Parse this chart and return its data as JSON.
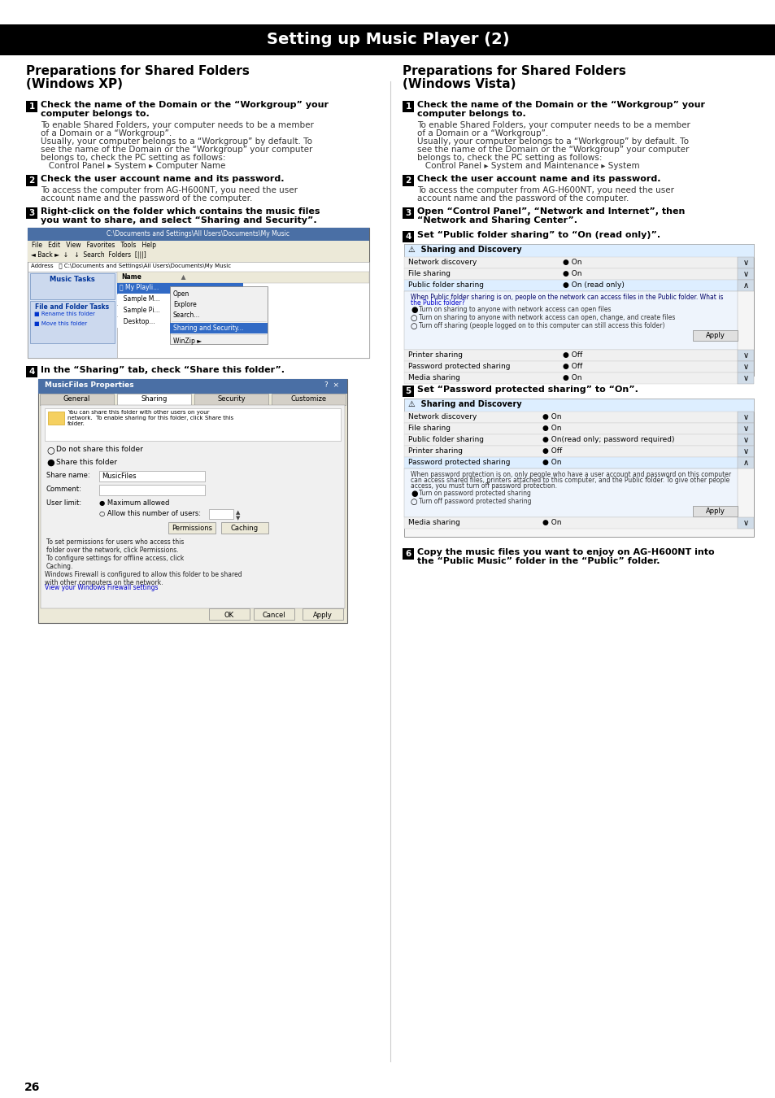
{
  "title": "Setting up Music Player (2)",
  "title_bg": "#000000",
  "title_color": "#ffffff",
  "title_fontsize": 13,
  "page_bg": "#ffffff",
  "page_number": "26",
  "left_col_title1": "Preparations for Shared Folders",
  "left_col_title2": "(Windows XP)",
  "right_col_title1": "Preparations for Shared Folders",
  "right_col_title2": "(Windows Vista)"
}
